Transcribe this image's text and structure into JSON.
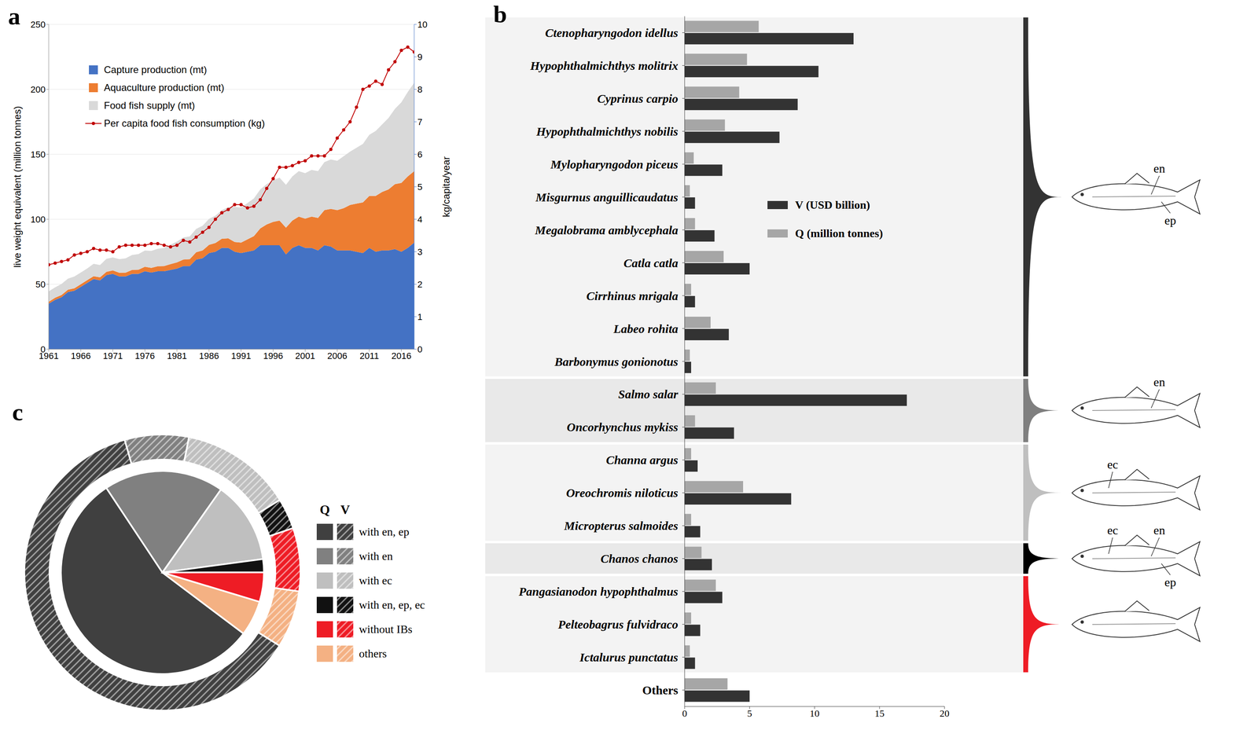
{
  "chart_data": [
    {
      "label": "a",
      "type": "area",
      "stacked": true,
      "grid": true,
      "legend": "upper left",
      "x": [
        1961,
        1962,
        1963,
        1964,
        1965,
        1966,
        1967,
        1968,
        1969,
        1970,
        1971,
        1972,
        1973,
        1974,
        1975,
        1976,
        1977,
        1978,
        1979,
        1980,
        1981,
        1982,
        1983,
        1984,
        1985,
        1986,
        1987,
        1988,
        1989,
        1990,
        1991,
        1992,
        1993,
        1994,
        1995,
        1996,
        1997,
        1998,
        1999,
        2000,
        2001,
        2002,
        2003,
        2004,
        2005,
        2006,
        2007,
        2008,
        2009,
        2010,
        2011,
        2012,
        2013,
        2014,
        2015,
        2016,
        2017,
        2018
      ],
      "xlim": [
        1961,
        2018
      ],
      "xticks": [
        1961,
        1966,
        1971,
        1976,
        1981,
        1986,
        1991,
        1996,
        2001,
        2006,
        2011,
        2016
      ],
      "ylim": [
        0,
        250
      ],
      "yticks": [
        0,
        50,
        100,
        150,
        200,
        250
      ],
      "y2lim": [
        0,
        10
      ],
      "y2ticks": [
        0,
        1,
        2,
        3,
        4,
        5,
        6,
        7,
        8,
        9,
        10
      ],
      "y_label": "live weight equivalent (million tonnes)",
      "y2_label": "kg/capita/year",
      "series": [
        {
          "name": "Capture production (mt)",
          "color": "#4472c4",
          "values": [
            35,
            38,
            40,
            44,
            45,
            48,
            51,
            54,
            53,
            57,
            58,
            56,
            56,
            58,
            58,
            60,
            59,
            60,
            60,
            61,
            62,
            64,
            64,
            69,
            70,
            74,
            75,
            78,
            78,
            75,
            74,
            75,
            76,
            80,
            80,
            80,
            80,
            73,
            78,
            80,
            78,
            78,
            76,
            80,
            79,
            76,
            76,
            76,
            75,
            74,
            78,
            75,
            76,
            76,
            77,
            75,
            78,
            82
          ]
        },
        {
          "name": "Aquaculture production (mt)",
          "color": "#ed7d31",
          "values": [
            1.5,
            1.6,
            1.7,
            1.8,
            1.9,
            2.0,
            2.1,
            2.2,
            2.3,
            2.5,
            2.6,
            2.8,
            2.9,
            3.0,
            3.2,
            3.4,
            3.6,
            3.8,
            4.0,
            4.5,
            4.8,
            5.0,
            5.3,
            5.6,
            6.0,
            6.3,
            6.7,
            7.0,
            7.3,
            7.5,
            8,
            9.5,
            11,
            13,
            16,
            18,
            19,
            20.5,
            21,
            22,
            22.5,
            24,
            25,
            27,
            29,
            31,
            32.5,
            35,
            37,
            39,
            40,
            43,
            45,
            47,
            50,
            53,
            55,
            55
          ]
        },
        {
          "name": "Food fish supply (mt)",
          "color": "#d9d9d9",
          "values": [
            8,
            8,
            8.5,
            8.5,
            9,
            9,
            9,
            9.5,
            9.5,
            10,
            10,
            10.5,
            11,
            11.5,
            12,
            12.5,
            13,
            13.5,
            14,
            15,
            16,
            17,
            17.5,
            18,
            19,
            20,
            21,
            22,
            24,
            27,
            27,
            28,
            29,
            30,
            31,
            32,
            33,
            33,
            34,
            35,
            35,
            36,
            36,
            37,
            38,
            38,
            40,
            41,
            43,
            45,
            47,
            50,
            52,
            55,
            58,
            62,
            65,
            68
          ]
        },
        {
          "name": "Per capita food fish consumption (kg)",
          "type": "line",
          "axis": "y2",
          "color": "#c00000",
          "marker": "circle",
          "values": [
            2.6,
            2.65,
            2.7,
            2.75,
            2.9,
            2.95,
            3.0,
            3.1,
            3.05,
            3.05,
            3.0,
            3.15,
            3.2,
            3.2,
            3.2,
            3.2,
            3.25,
            3.25,
            3.2,
            3.15,
            3.2,
            3.35,
            3.3,
            3.45,
            3.6,
            3.75,
            4.0,
            4.2,
            4.3,
            4.45,
            4.45,
            4.35,
            4.4,
            4.6,
            4.95,
            5.25,
            5.6,
            5.6,
            5.65,
            5.75,
            5.8,
            5.95,
            5.95,
            5.95,
            6.15,
            6.5,
            6.75,
            7.0,
            7.45,
            8.0,
            8.1,
            8.25,
            8.15,
            8.6,
            8.85,
            9.2,
            9.3,
            9.15
          ]
        }
      ]
    },
    {
      "label": "b",
      "type": "bar",
      "orientation": "horizontal",
      "legend": "center",
      "categories": [
        "Ctenopharyngodon idellus",
        "Hypophthalmichthys molitrix",
        "Cyprinus carpio",
        "Hypophthalmichthys nobilis",
        "Mylopharyngodon piceus",
        "Misgurnus anguillicaudatus",
        "Megalobrama amblycephala",
        "Catla catla",
        "Cirrhinus mrigala",
        "Labeo rohita",
        "Barbonymus gonionotus",
        "Salmo salar",
        "Oncorhynchus mykiss",
        "Channa argus",
        "Oreochromis niloticus",
        "Micropterus salmoides",
        "Chanos chanos",
        "Pangasianodon hypophthalmus",
        "Pelteobagrus fulvidraco",
        "Ictalurus punctatus",
        "Others"
      ],
      "xlim": [
        0,
        20
      ],
      "xticks": [
        0,
        5,
        10,
        15,
        20
      ],
      "series": [
        {
          "name": "Q (million tonnes)",
          "color": "#a6a6a6",
          "values": [
            5.7,
            4.8,
            4.2,
            3.1,
            0.7,
            0.4,
            0.8,
            3.0,
            0.5,
            2.0,
            0.4,
            2.4,
            0.8,
            0.5,
            4.5,
            0.5,
            1.3,
            2.4,
            0.5,
            0.4,
            3.3
          ]
        },
        {
          "name": "V (USD billion)",
          "color": "#333333",
          "values": [
            13.0,
            10.3,
            8.7,
            7.3,
            2.9,
            0.8,
            2.3,
            5.0,
            0.8,
            3.4,
            0.5,
            17.1,
            3.8,
            1.0,
            8.2,
            1.2,
            2.1,
            2.9,
            1.2,
            0.8,
            5.0
          ]
        }
      ],
      "groups": [
        {
          "members": [
            "Ctenopharyngodon idellus",
            "Hypophthalmichthys molitrix",
            "Cyprinus carpio",
            "Hypophthalmichthys nobilis",
            "Mylopharyngodon piceus",
            "Misgurnus anguillicaudatus",
            "Megalobrama amblycephala",
            "Catla catla",
            "Cirrhinus mrigala",
            "Labeo rohita",
            "Barbonymus gonionotus"
          ],
          "color": "#333333",
          "labels": [
            "en",
            "ep"
          ]
        },
        {
          "members": [
            "Salmo salar",
            "Oncorhynchus mykiss"
          ],
          "color": "#7f7f7f",
          "labels": [
            "en"
          ]
        },
        {
          "members": [
            "Channa argus",
            "Oreochromis niloticus",
            "Micropterus salmoides"
          ],
          "color": "#bfbfbf",
          "labels": [
            "ec"
          ]
        },
        {
          "members": [
            "Chanos chanos"
          ],
          "color": "#000000",
          "labels": [
            "ec",
            "en",
            "ep"
          ]
        },
        {
          "members": [
            "Pangasianodon hypophthalmus",
            "Pelteobagrus fulvidraco",
            "Ictalurus punctatus"
          ],
          "color": "#ee1c25",
          "labels": []
        }
      ]
    },
    {
      "label": "c",
      "type": "pie",
      "legend": "right",
      "categories": [
        "with en, ep",
        "with en",
        "with ec",
        "with en, ep, ec",
        "without IBs",
        "others"
      ],
      "colors": [
        "#404040",
        "#808080",
        "#bfbfbf",
        "#111111",
        "#ee1c25",
        "#f4b183"
      ],
      "series": [
        {
          "name": "Q",
          "values": [
            55.4,
            19.1,
            13.1,
            2.1,
            4.7,
            5.6
          ]
        },
        {
          "name": "V",
          "values": [
            61.7,
            7.5,
            13.1,
            3.6,
            7.4,
            6.7
          ]
        }
      ]
    }
  ]
}
